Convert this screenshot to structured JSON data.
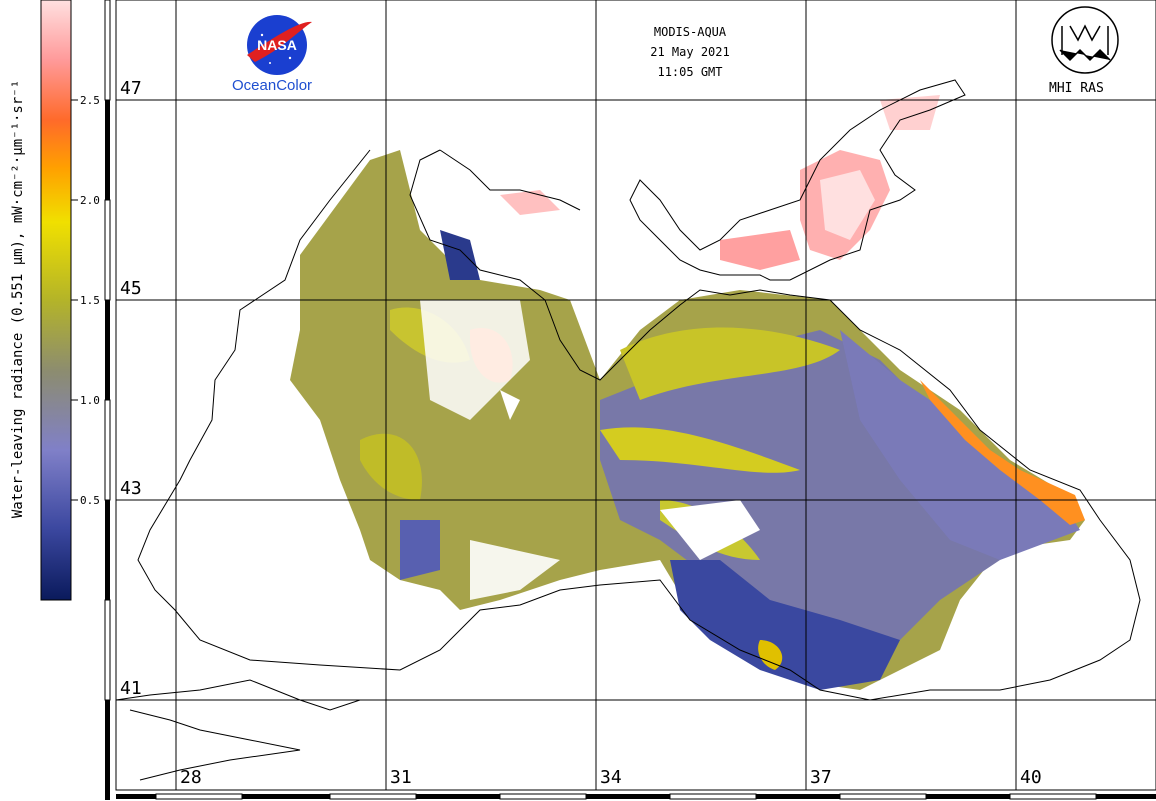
{
  "header": {
    "instrument": "MODIS-AQUA",
    "date": "21 May 2021",
    "time": "11:05 GMT"
  },
  "logos": {
    "nasa_text": "NASA",
    "nasa_caption": "OceanColor",
    "mhi_caption": "MHI RAS"
  },
  "colorbar": {
    "title": "Water-leaving radiance (0.551 µm), mW·cm⁻²·µm⁻¹·sr⁻¹",
    "ticks": [
      "2.5",
      "2.0",
      "1.5",
      "1.0",
      "0.5"
    ],
    "colors": [
      "#0a1a5c",
      "#4a55a8",
      "#8a8ad0",
      "#8c8c68",
      "#c8c800",
      "#f0e000",
      "#ff8000",
      "#ff5050",
      "#ffb0b0",
      "#ffe8e8"
    ]
  },
  "axes": {
    "latitudes": [
      "47",
      "45",
      "43",
      "41"
    ],
    "longitudes": [
      "28",
      "31",
      "34",
      "37",
      "40"
    ]
  },
  "colors": {
    "land": "#ffffff",
    "coast": "#000000",
    "grid": "#000000"
  }
}
